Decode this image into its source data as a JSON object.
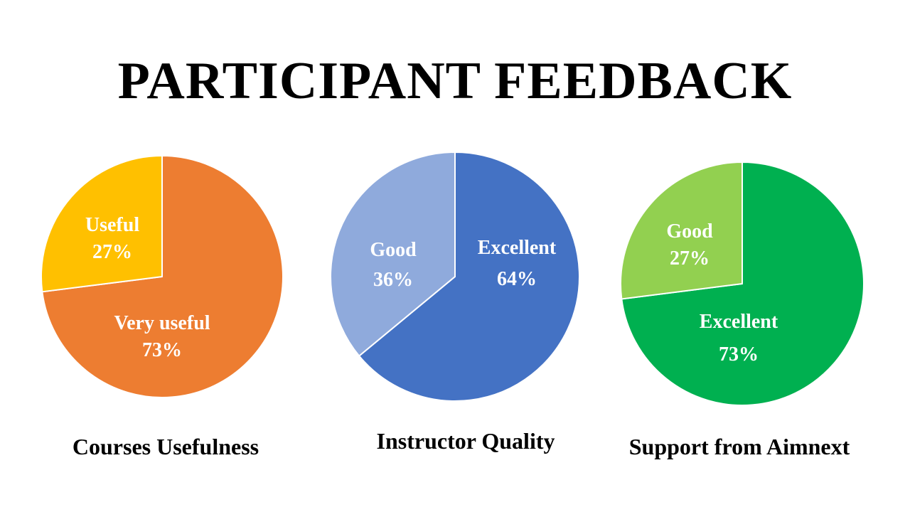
{
  "title": "PARTICIPANT FEEDBACK",
  "chart_data": [
    {
      "type": "pie",
      "title": "Courses Usefulness",
      "slices": [
        {
          "label": "Very useful",
          "value": 73,
          "display": "73%",
          "color": "#ED7D31"
        },
        {
          "label": "Useful",
          "value": 27,
          "display": "27%",
          "color": "#FFC000"
        }
      ]
    },
    {
      "type": "pie",
      "title": "Instructor Quality",
      "slices": [
        {
          "label": "Excellent",
          "value": 64,
          "display": "64%",
          "color": "#4472C4"
        },
        {
          "label": "Good",
          "value": 36,
          "display": "36%",
          "color": "#8FAADC"
        }
      ]
    },
    {
      "type": "pie",
      "title": "Support from Aimnext",
      "slices": [
        {
          "label": "Excellent",
          "value": 73,
          "display": "73%",
          "color": "#00B050"
        },
        {
          "label": "Good",
          "value": 27,
          "display": "27%",
          "color": "#92D050"
        }
      ]
    }
  ]
}
